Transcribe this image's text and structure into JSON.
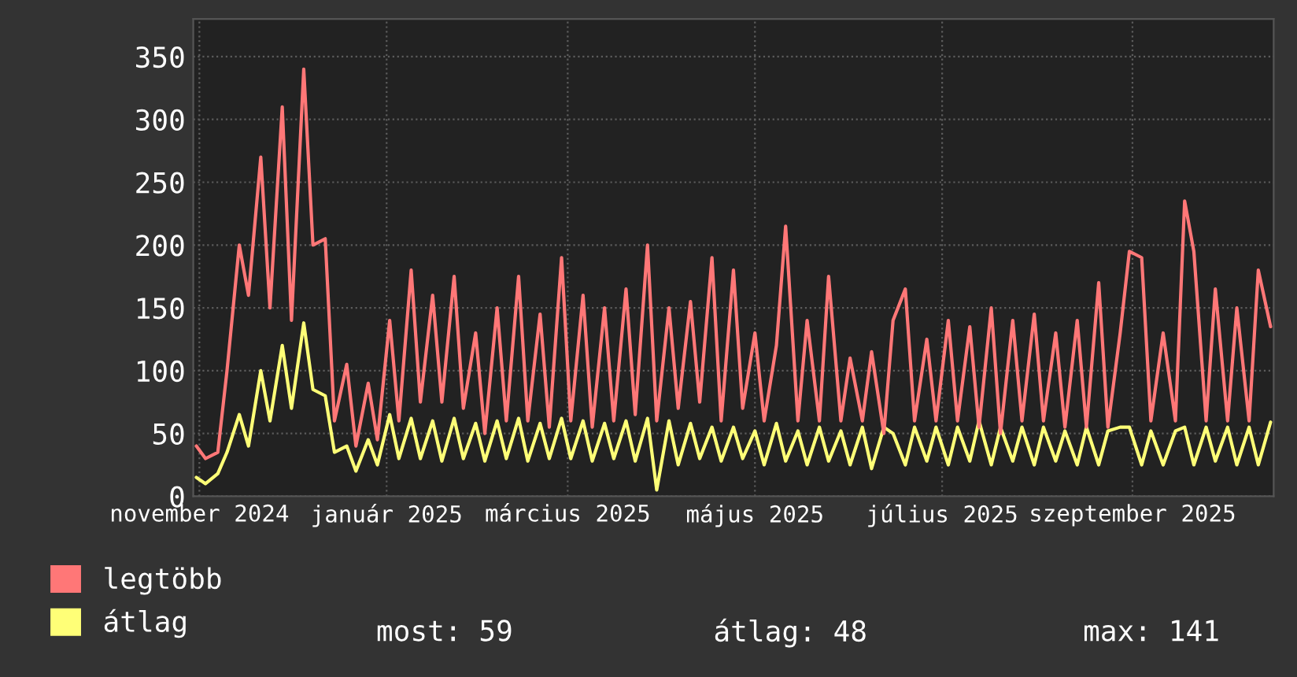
{
  "chart_data": {
    "type": "line",
    "xlim": [
      "2024-10-30",
      "2025-10-17"
    ],
    "xticks": [
      {
        "value": "2024-11-01",
        "label": "november 2024"
      },
      {
        "value": "2025-01-01",
        "label": "január 2025"
      },
      {
        "value": "2025-03-01",
        "label": "március 2025"
      },
      {
        "value": "2025-05-01",
        "label": "május 2025"
      },
      {
        "value": "2025-07-01",
        "label": "július 2025"
      },
      {
        "value": "2025-09-01",
        "label": "szeptember 2025"
      }
    ],
    "ylim": [
      0,
      380
    ],
    "yticks": [
      0,
      50,
      100,
      150,
      200,
      250,
      300,
      350
    ],
    "grid": true,
    "legend": "bottom left",
    "marker": "none",
    "line_style": "solid",
    "annotations": [
      "most: 59",
      "átlag: 48",
      "max: 141"
    ],
    "x": [
      "2024-10-31",
      "2024-11-03",
      "2024-11-07",
      "2024-11-10",
      "2024-11-14",
      "2024-11-17",
      "2024-11-21",
      "2024-11-24",
      "2024-11-28",
      "2024-12-01",
      "2024-12-05",
      "2024-12-08",
      "2024-12-12",
      "2024-12-15",
      "2024-12-19",
      "2024-12-22",
      "2024-12-26",
      "2024-12-29",
      "2025-01-02",
      "2025-01-05",
      "2025-01-09",
      "2025-01-12",
      "2025-01-16",
      "2025-01-19",
      "2025-01-23",
      "2025-01-26",
      "2025-01-30",
      "2025-02-02",
      "2025-02-06",
      "2025-02-09",
      "2025-02-13",
      "2025-02-16",
      "2025-02-20",
      "2025-02-23",
      "2025-02-27",
      "2025-03-02",
      "2025-03-06",
      "2025-03-09",
      "2025-03-13",
      "2025-03-16",
      "2025-03-20",
      "2025-03-23",
      "2025-03-27",
      "2025-03-30",
      "2025-04-03",
      "2025-04-06",
      "2025-04-10",
      "2025-04-13",
      "2025-04-17",
      "2025-04-20",
      "2025-04-24",
      "2025-04-27",
      "2025-05-01",
      "2025-05-04",
      "2025-05-08",
      "2025-05-11",
      "2025-05-15",
      "2025-05-18",
      "2025-05-22",
      "2025-05-25",
      "2025-05-29",
      "2025-06-01",
      "2025-06-05",
      "2025-06-08",
      "2025-06-12",
      "2025-06-15",
      "2025-06-19",
      "2025-06-22",
      "2025-06-26",
      "2025-06-29",
      "2025-07-03",
      "2025-07-06",
      "2025-07-10",
      "2025-07-13",
      "2025-07-17",
      "2025-07-20",
      "2025-07-24",
      "2025-07-27",
      "2025-07-31",
      "2025-08-03",
      "2025-08-07",
      "2025-08-10",
      "2025-08-14",
      "2025-08-17",
      "2025-08-21",
      "2025-08-24",
      "2025-08-28",
      "2025-08-31",
      "2025-09-04",
      "2025-09-07",
      "2025-09-11",
      "2025-09-15",
      "2025-09-18",
      "2025-09-21",
      "2025-09-25",
      "2025-09-28",
      "2025-10-02",
      "2025-10-05",
      "2025-10-09",
      "2025-10-12",
      "2025-10-16"
    ],
    "series": [
      {
        "name": "legtöbb",
        "color": "#ff7777",
        "values": [
          40,
          30,
          35,
          100,
          200,
          160,
          270,
          150,
          310,
          140,
          340,
          200,
          205,
          60,
          105,
          40,
          90,
          45,
          140,
          60,
          180,
          75,
          160,
          75,
          175,
          70,
          130,
          50,
          150,
          60,
          175,
          60,
          145,
          55,
          190,
          60,
          160,
          55,
          150,
          60,
          165,
          65,
          200,
          60,
          150,
          70,
          155,
          75,
          190,
          60,
          180,
          70,
          130,
          60,
          120,
          215,
          60,
          140,
          60,
          175,
          60,
          110,
          60,
          115,
          50,
          140,
          165,
          60,
          125,
          60,
          140,
          60,
          135,
          55,
          150,
          50,
          140,
          60,
          145,
          60,
          130,
          55,
          140,
          55,
          170,
          55,
          130,
          195,
          190,
          60,
          130,
          60,
          235,
          195,
          60,
          165,
          60,
          150,
          60,
          180,
          135
        ]
      },
      {
        "name": "átlag",
        "color": "#ffff77",
        "values": [
          15,
          10,
          18,
          35,
          65,
          40,
          100,
          60,
          120,
          70,
          138,
          85,
          80,
          35,
          40,
          20,
          45,
          25,
          65,
          30,
          62,
          30,
          60,
          28,
          62,
          30,
          58,
          28,
          60,
          30,
          62,
          28,
          58,
          30,
          62,
          30,
          60,
          28,
          58,
          30,
          60,
          28,
          62,
          5,
          60,
          25,
          58,
          30,
          55,
          28,
          55,
          30,
          52,
          25,
          58,
          28,
          52,
          25,
          55,
          28,
          52,
          25,
          55,
          22,
          55,
          50,
          25,
          55,
          28,
          55,
          25,
          55,
          28,
          60,
          25,
          55,
          28,
          55,
          25,
          55,
          28,
          52,
          25,
          55,
          25,
          52,
          55,
          55,
          25,
          52,
          25,
          52,
          55,
          25,
          55,
          28,
          55,
          25,
          55,
          25,
          59
        ]
      }
    ]
  }
}
